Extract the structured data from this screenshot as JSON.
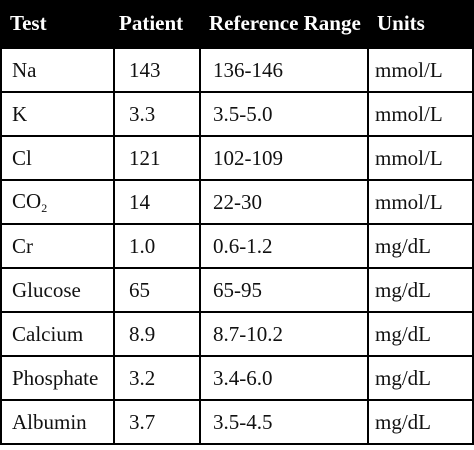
{
  "table": {
    "headers": [
      "Test",
      "Patient",
      "Reference Range",
      "Units"
    ],
    "rows": [
      {
        "test": "Na",
        "test_sub": "",
        "patient": "143",
        "reference_range": "136-146",
        "units": "mmol/L"
      },
      {
        "test": "K",
        "test_sub": "",
        "patient": "3.3",
        "reference_range": "3.5-5.0",
        "units": "mmol/L"
      },
      {
        "test": "Cl",
        "test_sub": "",
        "patient": "121",
        "reference_range": "102-109",
        "units": "mmol/L"
      },
      {
        "test": "CO",
        "test_sub": "2",
        "patient": "14",
        "reference_range": "22-30",
        "units": "mmol/L"
      },
      {
        "test": "Cr",
        "test_sub": "",
        "patient": "1.0",
        "reference_range": "0.6-1.2",
        "units": "mg/dL"
      },
      {
        "test": "Glucose",
        "test_sub": "",
        "patient": "65",
        "reference_range": "65-95",
        "units": "mg/dL"
      },
      {
        "test": "Calcium",
        "test_sub": "",
        "patient": "8.9",
        "reference_range": "8.7-10.2",
        "units": "mg/dL"
      },
      {
        "test": "Phosphate",
        "test_sub": "",
        "patient": "3.2",
        "reference_range": "3.4-6.0",
        "units": "mg/dL"
      },
      {
        "test": "Albumin",
        "test_sub": "",
        "patient": "3.7",
        "reference_range": "3.5-4.5",
        "units": "mg/dL"
      }
    ]
  }
}
